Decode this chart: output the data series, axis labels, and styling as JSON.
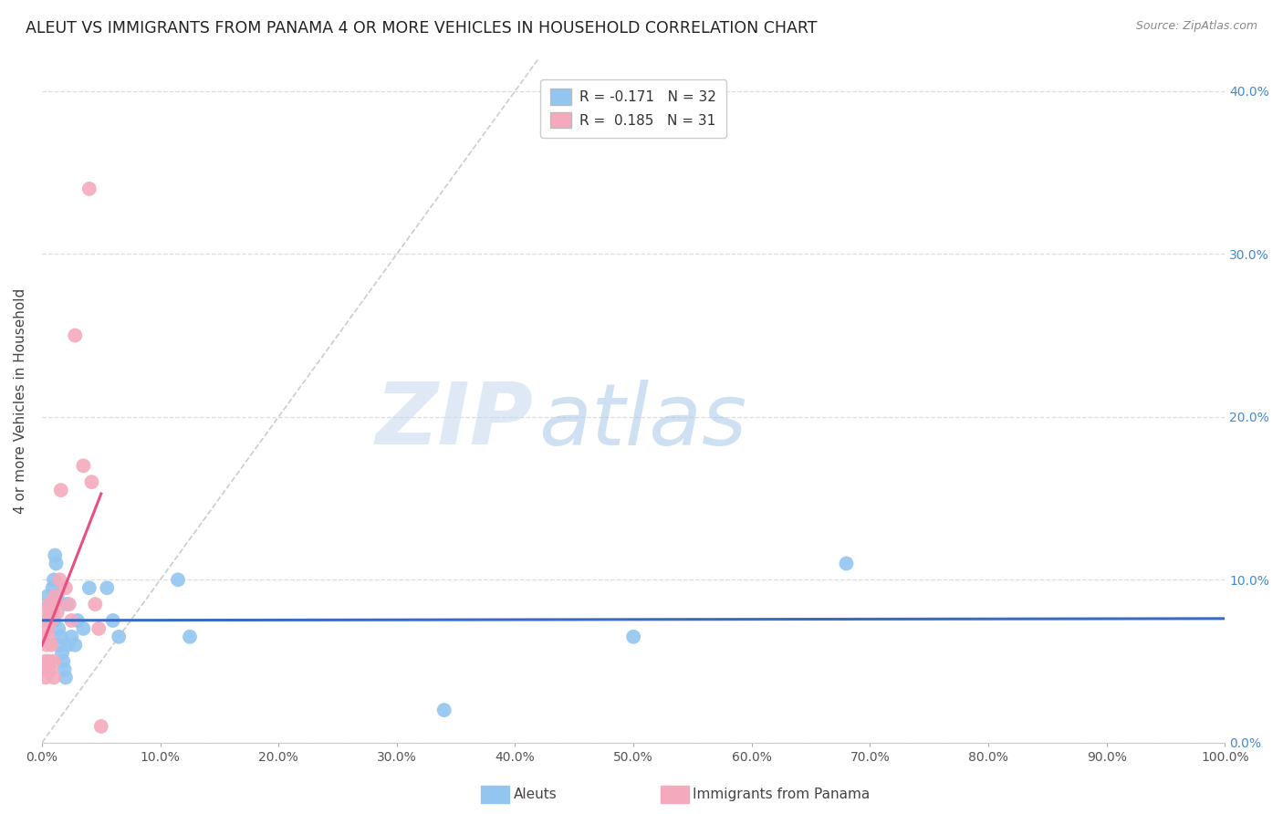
{
  "title": "ALEUT VS IMMIGRANTS FROM PANAMA 4 OR MORE VEHICLES IN HOUSEHOLD CORRELATION CHART",
  "source": "Source: ZipAtlas.com",
  "ylabel": "4 or more Vehicles in Household",
  "xlim": [
    0,
    1.0
  ],
  "ylim": [
    0,
    0.42
  ],
  "xticks": [
    0.0,
    0.1,
    0.2,
    0.3,
    0.4,
    0.5,
    0.6,
    0.7,
    0.8,
    0.9,
    1.0
  ],
  "xticklabels": [
    "0.0%",
    "10.0%",
    "20.0%",
    "30.0%",
    "40.0%",
    "50.0%",
    "60.0%",
    "70.0%",
    "80.0%",
    "90.0%",
    "100.0%"
  ],
  "yticks": [
    0.0,
    0.1,
    0.2,
    0.3,
    0.4
  ],
  "yticklabels_right": [
    "0.0%",
    "10.0%",
    "20.0%",
    "30.0%",
    "40.0%"
  ],
  "legend_r1": "R = -0.171",
  "legend_n1": "N = 32",
  "legend_r2": "R =  0.185",
  "legend_n2": "N = 31",
  "color_aleut": "#92C5F0",
  "color_panama": "#F4AABC",
  "color_line_aleut": "#3A6BC4",
  "color_line_panama": "#E85080",
  "color_diagonal": "#CCCCCC",
  "aleut_x": [
    0.005,
    0.006,
    0.007,
    0.008,
    0.009,
    0.01,
    0.01,
    0.011,
    0.012,
    0.013,
    0.014,
    0.015,
    0.016,
    0.017,
    0.018,
    0.019,
    0.02,
    0.021,
    0.022,
    0.025,
    0.028,
    0.03,
    0.035,
    0.04,
    0.055,
    0.06,
    0.065,
    0.115,
    0.125,
    0.34,
    0.5,
    0.68
  ],
  "aleut_y": [
    0.09,
    0.085,
    0.08,
    0.075,
    0.095,
    0.1,
    0.075,
    0.115,
    0.11,
    0.09,
    0.07,
    0.06,
    0.065,
    0.055,
    0.05,
    0.045,
    0.04,
    0.085,
    0.06,
    0.065,
    0.06,
    0.075,
    0.07,
    0.095,
    0.095,
    0.075,
    0.065,
    0.1,
    0.065,
    0.02,
    0.065,
    0.11
  ],
  "panama_x": [
    0.003,
    0.003,
    0.004,
    0.004,
    0.005,
    0.005,
    0.005,
    0.005,
    0.006,
    0.006,
    0.007,
    0.008,
    0.008,
    0.009,
    0.01,
    0.01,
    0.011,
    0.012,
    0.013,
    0.015,
    0.016,
    0.02,
    0.023,
    0.025,
    0.028,
    0.035,
    0.04,
    0.042,
    0.045,
    0.048,
    0.05
  ],
  "panama_y": [
    0.05,
    0.04,
    0.06,
    0.045,
    0.065,
    0.07,
    0.075,
    0.08,
    0.085,
    0.05,
    0.045,
    0.06,
    0.075,
    0.08,
    0.05,
    0.04,
    0.09,
    0.085,
    0.08,
    0.1,
    0.155,
    0.095,
    0.085,
    0.075,
    0.25,
    0.17,
    0.34,
    0.16,
    0.085,
    0.07,
    0.01
  ],
  "background_color": "#FFFFFF",
  "grid_color": "#DDDDDD",
  "watermark_zip": "ZIP",
  "watermark_atlas": "atlas",
  "watermark_color_zip": "#C5D8F0",
  "watermark_color_atlas": "#A8C8E8"
}
